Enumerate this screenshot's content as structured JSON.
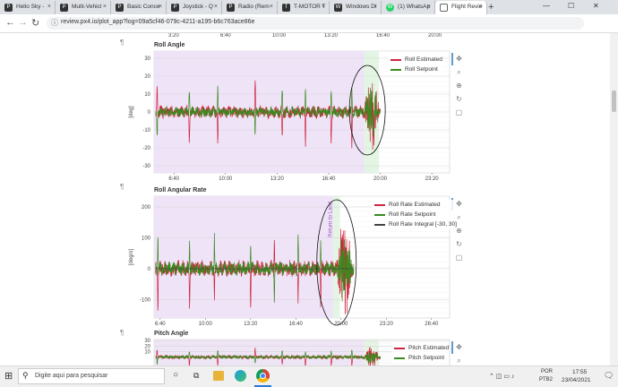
{
  "browser": {
    "tabs": [
      {
        "label": "Hello Sky - ",
        "icon": "px4-icon",
        "icon_text": "P"
      },
      {
        "label": "Multi-Vehicl",
        "icon": "px4-icon",
        "icon_text": "P"
      },
      {
        "label": "Basic Conce",
        "icon": "px4-icon",
        "icon_text": "P"
      },
      {
        "label": "Joystick - Q",
        "icon": "px4-icon",
        "icon_text": "P"
      },
      {
        "label": "Radio (Rem",
        "icon": "px4-icon",
        "icon_text": "P"
      },
      {
        "label": "T-MOTOR T",
        "icon": "tmotor-icon",
        "icon_text": "T"
      },
      {
        "label": "Windows Di",
        "icon": "windows-icon",
        "icon_text": "W"
      },
      {
        "label": "(1) WhatsAp",
        "icon": "whatsapp-icon",
        "icon_text": "W"
      },
      {
        "label": "Flight Revie",
        "icon": "document-icon",
        "icon_text": ""
      }
    ],
    "new_tab_glyph": "+",
    "window_controls": [
      "—",
      "☐",
      "✕"
    ],
    "url": "review.px4.io/plot_app?log=09a5cf46-079c-4211-a195-b6c763ace86e",
    "back_glyph": "←",
    "forward_glyph": "→",
    "reload_glyph": "↻",
    "info_glyph": "ⓘ"
  },
  "page": {
    "pilcrow": "¶",
    "top_axis_ticks": [
      "3:20",
      "6:40",
      "10:00",
      "13:20",
      "16:40",
      "20:00"
    ]
  },
  "chart_data": [
    {
      "type": "line",
      "title": "Roll Angle",
      "ylabel": "[deg]",
      "ylim": [
        -34,
        34
      ],
      "yticks": [
        30,
        20,
        10,
        0,
        -10,
        -20,
        -30
      ],
      "xticks": [
        "6:40",
        "10:00",
        "13:20",
        "16:40",
        "20:00",
        "23:20"
      ],
      "xlim_seconds": [
        323,
        1469
      ],
      "grid": true,
      "legend_position": "top-right",
      "series": [
        {
          "name": "Roll Estimated",
          "color": "#d0243c"
        },
        {
          "name": "Roll Setpoint",
          "color": "#3a8a1f"
        }
      ],
      "spikes_seconds": [
        335,
        460,
        570,
        715,
        820,
        910,
        1010,
        1090
      ],
      "noise_amplitude": 3,
      "burst_seconds": [
        1138,
        1195
      ],
      "burst_amplitude": 19,
      "offset": 0
    },
    {
      "type": "line",
      "title": "Roll Angular Rate",
      "ylabel": "[deg/s]",
      "ylim": [
        -160,
        235
      ],
      "yticks": [
        200,
        100,
        0,
        -100
      ],
      "xticks": [
        "6:40",
        "10:00",
        "13:20",
        "16:40",
        "20:00",
        "23:20",
        "26:40"
      ],
      "xlim_seconds": [
        373,
        1680
      ],
      "grid": true,
      "legend_position": "top-right",
      "annotation": "Return to Land",
      "series": [
        {
          "name": "Roll Rate Estimated",
          "color": "#d0243c"
        },
        {
          "name": "Roll Rate Setpoint",
          "color": "#3a8a1f"
        },
        {
          "name": "Roll Rate Integral [-30, 30]",
          "color": "#444444"
        }
      ],
      "spikes_seconds": [
        390,
        530,
        640,
        800,
        905,
        1010,
        1110
      ],
      "noise_amplitude": 22,
      "burst_seconds": [
        1180,
        1250
      ],
      "burst_amplitude": 150,
      "offset": 0
    },
    {
      "type": "line",
      "title": "Pitch Angle",
      "yticks": [
        30,
        20,
        10
      ],
      "ylim": [
        -30,
        32
      ],
      "xlim_seconds": [
        323,
        1469
      ],
      "grid": true,
      "legend_position": "top-right",
      "series": [
        {
          "name": "Pitch Estimated",
          "color": "#d0243c"
        },
        {
          "name": "Pitch Setpoint",
          "color": "#3a8a1f"
        }
      ],
      "spikes_seconds": [
        335,
        460,
        570,
        715,
        820,
        910,
        1010,
        1090
      ],
      "noise_amplitude": 3,
      "burst_seconds": [
        1138,
        1195
      ],
      "burst_amplitude": 19,
      "offset": 0
    }
  ],
  "taskbar": {
    "search_placeholder": "Digite aqui para pesquisar",
    "time": "17:55",
    "date": "23/04/2021",
    "lang": "POR",
    "layout": "PTB2",
    "search_glyph": "⚲",
    "start_glyph": "⊞",
    "cortana_glyph": "○",
    "taskview_glyph": "⧉",
    "notify_glyph": "🗨",
    "tray_glyphs": "⌃ ◫ ▭ ♪"
  }
}
